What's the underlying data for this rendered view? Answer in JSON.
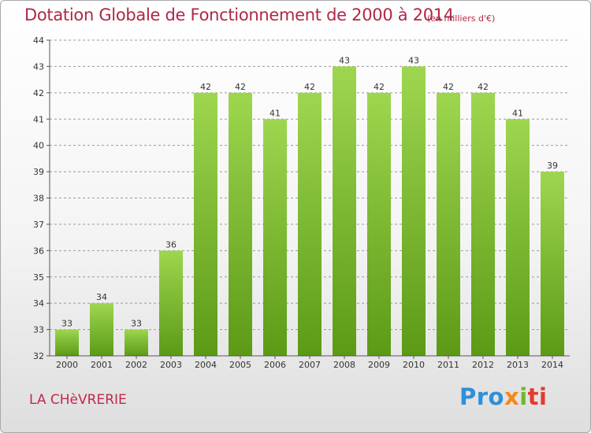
{
  "header": {
    "title": "Dotation Globale de Fonctionnement de 2000 à 2014",
    "unit": "(en milliers d'€)"
  },
  "footer": {
    "commune": "LA CHèVRERIE",
    "logo_parts": [
      "Pro",
      "x",
      "i",
      "ti"
    ]
  },
  "colors": {
    "bar_top": "#9ed64f",
    "bar_bottom": "#5c9a16",
    "title": "#b02747",
    "grid": "#9a9a9a"
  },
  "chart_data": {
    "type": "bar",
    "title": "Dotation Globale de Fonctionnement de 2000 à 2014",
    "subtitle": "(en milliers d'€)",
    "xlabel": "",
    "ylabel": "",
    "categories": [
      "2000",
      "2001",
      "2002",
      "2003",
      "2004",
      "2005",
      "2006",
      "2007",
      "2008",
      "2009",
      "2010",
      "2011",
      "2012",
      "2013",
      "2014"
    ],
    "values": [
      33,
      34,
      33,
      36,
      42,
      42,
      41,
      42,
      43,
      42,
      43,
      42,
      42,
      41,
      39
    ],
    "ylim": [
      32,
      44
    ],
    "yticks": [
      32,
      33,
      34,
      35,
      36,
      37,
      38,
      39,
      40,
      41,
      42,
      43,
      44
    ],
    "grid": "horizontal dashed",
    "legend": "none"
  }
}
